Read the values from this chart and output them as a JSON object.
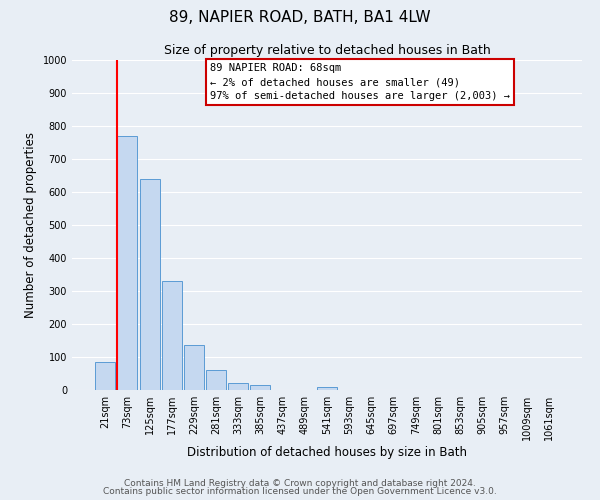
{
  "title": "89, NAPIER ROAD, BATH, BA1 4LW",
  "subtitle": "Size of property relative to detached houses in Bath",
  "xlabel": "Distribution of detached houses by size in Bath",
  "ylabel": "Number of detached properties",
  "bar_labels": [
    "21sqm",
    "73sqm",
    "125sqm",
    "177sqm",
    "229sqm",
    "281sqm",
    "333sqm",
    "385sqm",
    "437sqm",
    "489sqm",
    "541sqm",
    "593sqm",
    "645sqm",
    "697sqm",
    "749sqm",
    "801sqm",
    "853sqm",
    "905sqm",
    "957sqm",
    "1009sqm",
    "1061sqm"
  ],
  "bar_values": [
    85,
    770,
    640,
    330,
    135,
    60,
    22,
    15,
    0,
    0,
    10,
    0,
    0,
    0,
    0,
    0,
    0,
    0,
    0,
    0,
    0
  ],
  "bar_color": "#c5d8f0",
  "bar_edge_color": "#5b9bd5",
  "annotation_text_line1": "89 NAPIER ROAD: 68sqm",
  "annotation_text_line2": "← 2% of detached houses are smaller (49)",
  "annotation_text_line3": "97% of semi-detached houses are larger (2,003) →",
  "annotation_box_color": "#ffffff",
  "annotation_box_edge": "#cc0000",
  "footnote1": "Contains HM Land Registry data © Crown copyright and database right 2024.",
  "footnote2": "Contains public sector information licensed under the Open Government Licence v3.0.",
  "ylim": [
    0,
    1000
  ],
  "yticks": [
    0,
    100,
    200,
    300,
    400,
    500,
    600,
    700,
    800,
    900,
    1000
  ],
  "background_color": "#e8eef5",
  "grid_color": "#ffffff",
  "title_fontsize": 11,
  "subtitle_fontsize": 9,
  "axis_fontsize": 8.5,
  "tick_fontsize": 7,
  "footnote_fontsize": 6.5,
  "annotation_fontsize": 7.5
}
